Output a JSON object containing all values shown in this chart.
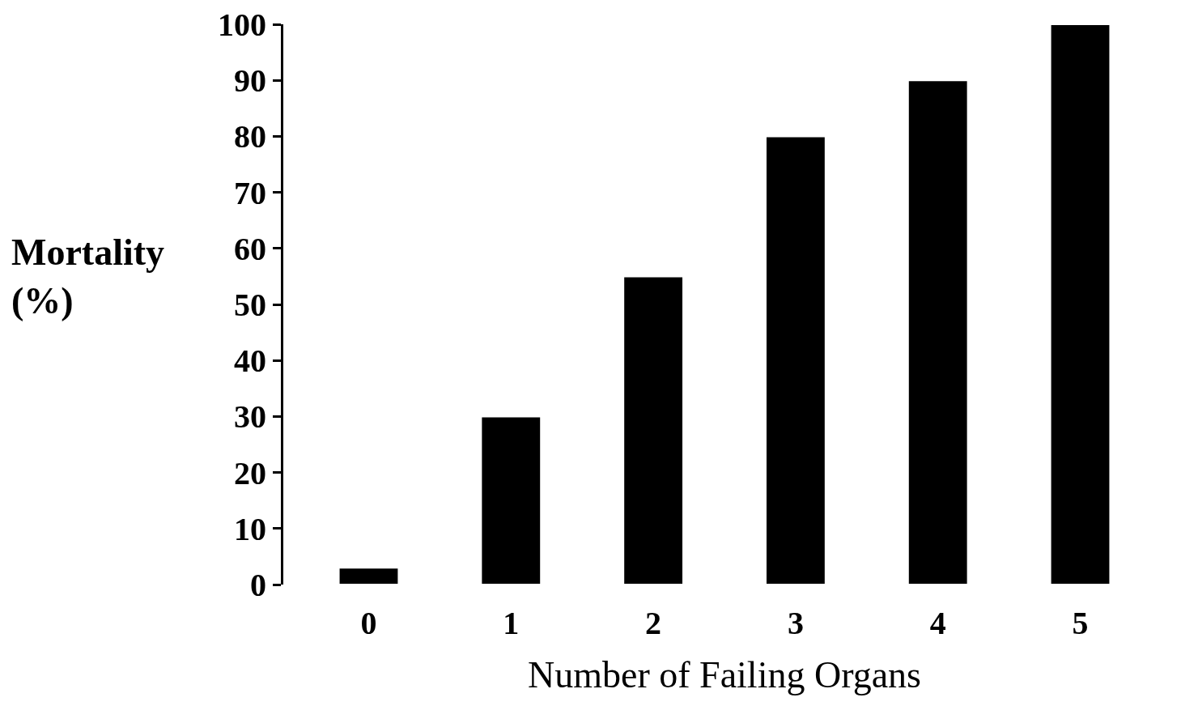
{
  "chart_data": {
    "type": "bar",
    "xlabel": "Number of Failing Organs",
    "ylabel": "Mortality (%)",
    "categories": [
      "0",
      "1",
      "2",
      "3",
      "4",
      "5"
    ],
    "values": [
      3,
      30,
      55,
      80,
      90,
      100
    ],
    "color": "#000000",
    "ylim": [
      0,
      100
    ],
    "yticks": [
      0,
      10,
      20,
      30,
      40,
      50,
      60,
      70,
      80,
      90,
      100
    ],
    "grid": false
  }
}
